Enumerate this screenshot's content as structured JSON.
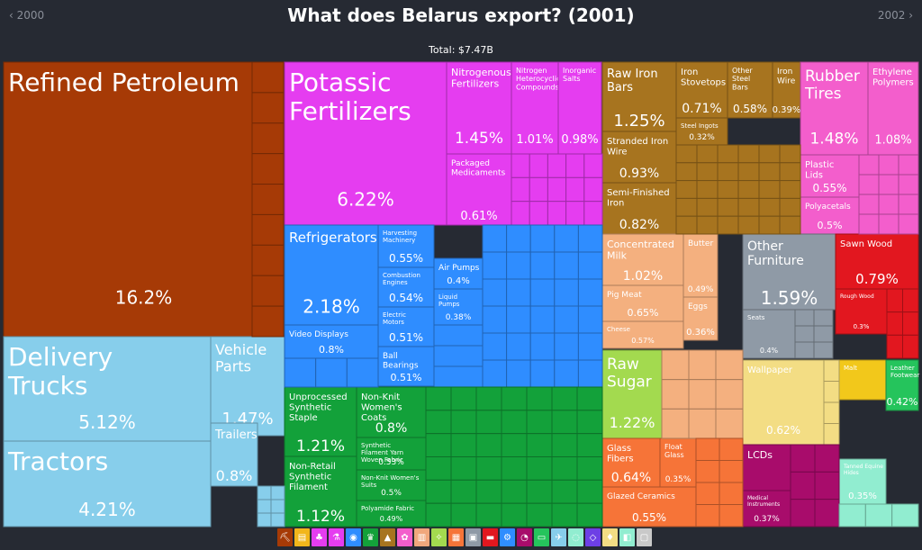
{
  "header": {
    "title": "What does Belarus export? (2001)",
    "prev_year": "‹ 2000",
    "next_year": "2002 ›",
    "total": "Total: $7.47B"
  },
  "colors": {
    "mineral": "#a63a06",
    "transport": "#87ceeb",
    "chemicals": "#e53df0",
    "metals": "#a7741f",
    "plastics": "#f35ecc",
    "machinery": "#2f8dff",
    "textiles": "#13a13a",
    "foodstuffs": "#f0a77c",
    "instruments": "#8f9aa6",
    "animal": "#f4b07f",
    "vegetable": "#a3da4f",
    "stone": "#f67438",
    "wood": "#e2171f",
    "misc": "#f3dd84",
    "electronics": "#a80c6b",
    "agri": "#f2c81b",
    "footwear": "#25c45c",
    "precious": "#91edd0",
    "arts": "#6d3fe5"
  },
  "chart_data": {
    "type": "treemap",
    "title": "What does Belarus export? (2001)",
    "total": "$7.47B",
    "unit": "% of total exports",
    "items": [
      {
        "name": "Refined Petroleum",
        "value": "16.2%",
        "group": "mineral"
      },
      {
        "name": "Delivery Trucks",
        "value": "5.12%",
        "group": "transport"
      },
      {
        "name": "Tractors",
        "value": "4.21%",
        "group": "transport"
      },
      {
        "name": "Vehicle Parts",
        "value": "1.47%",
        "group": "transport"
      },
      {
        "name": "Trailers",
        "value": "0.8%",
        "group": "transport"
      },
      {
        "name": "Potassic Fertilizers",
        "value": "6.22%",
        "group": "chemicals"
      },
      {
        "name": "Nitrogenous Fertilizers",
        "value": "1.45%",
        "group": "chemicals"
      },
      {
        "name": "Nitrogen Heterocyclic Compounds",
        "value": "1.01%",
        "group": "chemicals"
      },
      {
        "name": "Inorganic Salts",
        "value": "0.98%",
        "group": "chemicals"
      },
      {
        "name": "Packaged Medicaments",
        "value": "0.61%",
        "group": "chemicals"
      },
      {
        "name": "Raw Iron Bars",
        "value": "1.25%",
        "group": "metals"
      },
      {
        "name": "Iron Stovetops",
        "value": "0.71%",
        "group": "metals"
      },
      {
        "name": "Other Steel Bars",
        "value": "0.58%",
        "group": "metals"
      },
      {
        "name": "Iron Wire",
        "value": "0.39%",
        "group": "metals"
      },
      {
        "name": "Stranded Iron Wire",
        "value": "0.93%",
        "group": "metals"
      },
      {
        "name": "Steel Ingots",
        "value": "0.32%",
        "group": "metals"
      },
      {
        "name": "Semi-Finished Iron",
        "value": "0.82%",
        "group": "metals"
      },
      {
        "name": "Rubber Tires",
        "value": "1.48%",
        "group": "plastics"
      },
      {
        "name": "Ethylene Polymers",
        "value": "1.08%",
        "group": "plastics"
      },
      {
        "name": "Plastic Lids",
        "value": "0.55%",
        "group": "plastics"
      },
      {
        "name": "Polyacetals",
        "value": "0.5%",
        "group": "plastics"
      },
      {
        "name": "Refrigerators",
        "value": "2.18%",
        "group": "machinery"
      },
      {
        "name": "Harvesting Machinery",
        "value": "0.55%",
        "group": "machinery"
      },
      {
        "name": "Combustion Engines",
        "value": "0.54%",
        "group": "machinery"
      },
      {
        "name": "Electric Motors",
        "value": "0.51%",
        "group": "machinery"
      },
      {
        "name": "Ball Bearings",
        "value": "0.51%",
        "group": "machinery"
      },
      {
        "name": "Video Displays",
        "value": "0.8%",
        "group": "machinery"
      },
      {
        "name": "Air Pumps",
        "value": "0.4%",
        "group": "machinery"
      },
      {
        "name": "Liquid Pumps",
        "value": "0.38%",
        "group": "machinery"
      },
      {
        "name": "Unprocessed Synthetic Staple Fibers",
        "value": "1.21%",
        "group": "textiles"
      },
      {
        "name": "Non-Retail Synthetic Filament Yarn",
        "value": "1.12%",
        "group": "textiles"
      },
      {
        "name": "Non-Knit Women's Coats",
        "value": "0.8%",
        "group": "textiles"
      },
      {
        "name": "Synthetic Filament Yarn Woven Fabric",
        "value": "0.53%",
        "group": "textiles"
      },
      {
        "name": "Non-Knit Women's Suits",
        "value": "0.5%",
        "group": "textiles"
      },
      {
        "name": "Polyamide Fabric",
        "value": "0.49%",
        "group": "textiles"
      },
      {
        "name": "Concentrated Milk",
        "value": "1.02%",
        "group": "animal"
      },
      {
        "name": "Butter",
        "value": "0.49%",
        "group": "animal"
      },
      {
        "name": "Pig Meat",
        "value": "0.65%",
        "group": "animal"
      },
      {
        "name": "Eggs",
        "value": "0.36%",
        "group": "animal"
      },
      {
        "name": "Cheese",
        "value": "0.57%",
        "group": "animal"
      },
      {
        "name": "Raw Sugar",
        "value": "1.22%",
        "group": "vegetable"
      },
      {
        "name": "Glass Fibers",
        "value": "0.64%",
        "group": "stone"
      },
      {
        "name": "Float Glass",
        "value": "0.35%",
        "group": "stone"
      },
      {
        "name": "Glazed Ceramics",
        "value": "0.55%",
        "group": "stone"
      },
      {
        "name": "Other Furniture",
        "value": "1.59%",
        "group": "instruments"
      },
      {
        "name": "Seats",
        "value": "0.4%",
        "group": "instruments"
      },
      {
        "name": "Sawn Wood",
        "value": "0.79%",
        "group": "wood"
      },
      {
        "name": "Rough Wood",
        "value": "0.3%",
        "group": "wood"
      },
      {
        "name": "Wallpaper",
        "value": "0.62%",
        "group": "misc"
      },
      {
        "name": "Malt",
        "value": "",
        "group": "agri"
      },
      {
        "name": "Leather Footwear",
        "value": "0.42%",
        "group": "footwear"
      },
      {
        "name": "LCDs",
        "value": "0.41%",
        "group": "electronics"
      },
      {
        "name": "Medical Instruments",
        "value": "0.37%",
        "group": "electronics"
      },
      {
        "name": "Tanned Equine Hides",
        "value": "0.35%",
        "group": "precious"
      }
    ]
  },
  "legend": [
    {
      "icon": "⛏",
      "color": "#a63a06"
    },
    {
      "icon": "▤",
      "color": "#f2b61b"
    },
    {
      "icon": "♣",
      "color": "#e53df0"
    },
    {
      "icon": "⚗",
      "color": "#e53df0"
    },
    {
      "icon": "◉",
      "color": "#2f8dff"
    },
    {
      "icon": "♛",
      "color": "#13a13a"
    },
    {
      "icon": "▲",
      "color": "#a7741f"
    },
    {
      "icon": "✿",
      "color": "#f35ecc"
    },
    {
      "icon": "▥",
      "color": "#f0a77c"
    },
    {
      "icon": "✧",
      "color": "#a3da4f"
    },
    {
      "icon": "▦",
      "color": "#f67438"
    },
    {
      "icon": "▣",
      "color": "#8f9aa6"
    },
    {
      "icon": "▬",
      "color": "#e2171f"
    },
    {
      "icon": "⚙",
      "color": "#2f8dff"
    },
    {
      "icon": "◔",
      "color": "#a80c6b"
    },
    {
      "icon": "▭",
      "color": "#25c45c"
    },
    {
      "icon": "✈",
      "color": "#87ceeb"
    },
    {
      "icon": "◌",
      "color": "#91edd0"
    },
    {
      "icon": "◇",
      "color": "#6d3fe5"
    },
    {
      "icon": "♦",
      "color": "#f3dd84"
    },
    {
      "icon": "◧",
      "color": "#91edd0"
    },
    {
      "icon": "▢",
      "color": "#c9c9c9"
    }
  ]
}
